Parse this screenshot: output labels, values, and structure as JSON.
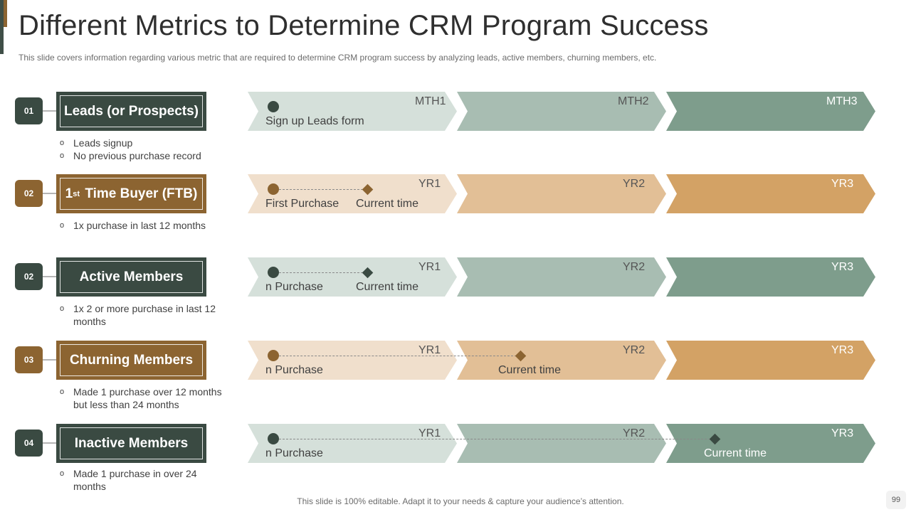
{
  "slide": {
    "title": "Different Metrics to Determine CRM Program Success",
    "subtitle": "This slide covers information regarding various metric that are required to determine CRM program success by analyzing leads, active members, churning members, etc.",
    "footer": "This slide is 100% editable. Adapt it to your needs & capture your audience’s attention.",
    "page_number": "99"
  },
  "colors": {
    "dark": "#3a4a42",
    "gold": "#8c6431",
    "green_light": "#d5e0da",
    "green_mid": "#a8bdb2",
    "green_dark": "#7e9d8c",
    "tan_light": "#f0dfcc",
    "tan_mid": "#e2bf96",
    "tan_dark": "#d3a265"
  },
  "metrics": [
    {
      "number": "01",
      "label": "Leads (or Prospects)",
      "bullets": [
        "Leads signup",
        "No previous purchase record"
      ],
      "periods": [
        "MTH1",
        "MTH2",
        "MTH3"
      ],
      "start_text": "Sign up Leads form"
    },
    {
      "number": "02",
      "label_sup": "st",
      "label_pre": "1",
      "label": "Time Buyer (FTB)",
      "bullets": [
        "1x purchase in last 12 months"
      ],
      "periods": [
        "YR1",
        "YR2",
        "YR3"
      ],
      "start_text": "First Purchase",
      "end_text": "Current time"
    },
    {
      "number": "02",
      "label": "Active Members",
      "bullets": [
        "1x 2 or more purchase in last 12 months"
      ],
      "periods": [
        "YR1",
        "YR2",
        "YR3"
      ],
      "start_text": "n Purchase",
      "end_text": "Current time"
    },
    {
      "number": "03",
      "label": "Churning Members",
      "bullets": [
        "Made 1 purchase over 12 months but less than 24 months"
      ],
      "periods": [
        "YR1",
        "YR2",
        "YR3"
      ],
      "start_text": "n Purchase",
      "end_text": "Current time"
    },
    {
      "number": "04",
      "label": "Inactive Members",
      "bullets": [
        "Made 1 purchase in over 24 months"
      ],
      "periods": [
        "YR1",
        "YR2",
        "YR3"
      ],
      "start_text": "n Purchase",
      "end_text": "Current time"
    }
  ]
}
